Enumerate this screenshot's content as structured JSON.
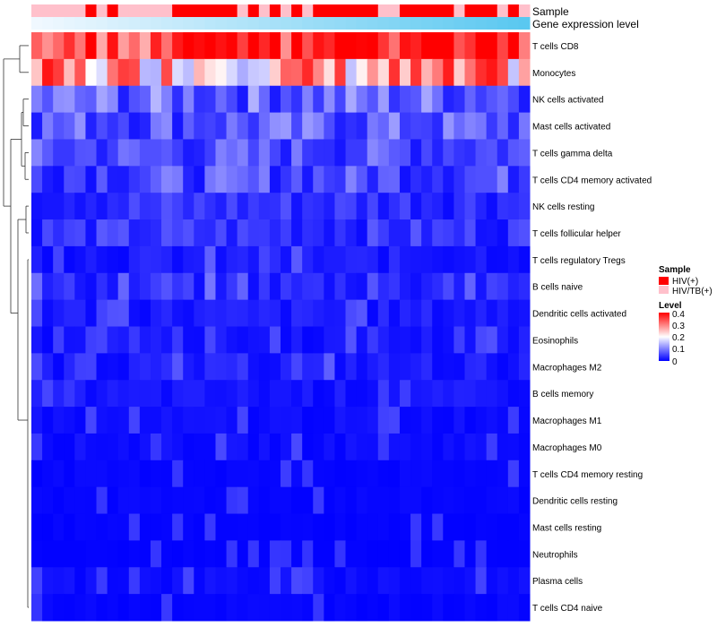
{
  "chart_data": {
    "type": "heatmap",
    "row_labels": [
      "T cells CD8",
      "Monocytes",
      "NK cells activated",
      "Mast cells activated",
      "T cells gamma delta",
      "T cells CD4 memory activated",
      "NK cells resting",
      "T cells follicular helper",
      "T cells regulatory  Tregs",
      "B cells naive",
      "Dendritic cells activated",
      "Eosinophils",
      "Macrophages M2",
      "B cells memory",
      "Macrophages M1",
      "Macrophages M0",
      "T cells CD4 memory resting",
      "Dendritic cells resting",
      "Mast cells resting",
      "Neutrophils",
      "Plasma cells",
      "T cells CD4 naive"
    ],
    "n_columns": 46,
    "sample_groups": [
      "HIV/TB(+)",
      "HIV/TB(+)",
      "HIV/TB(+)",
      "HIV/TB(+)",
      "HIV/TB(+)",
      "HIV(+)",
      "HIV/TB(+)",
      "HIV(+)",
      "HIV/TB(+)",
      "HIV/TB(+)",
      "HIV/TB(+)",
      "HIV/TB(+)",
      "HIV/TB(+)",
      "HIV(+)",
      "HIV(+)",
      "HIV(+)",
      "HIV(+)",
      "HIV(+)",
      "HIV(+)",
      "HIV/TB(+)",
      "HIV(+)",
      "HIV/TB(+)",
      "HIV(+)",
      "HIV/TB(+)",
      "HIV(+)",
      "HIV/TB(+)",
      "HIV(+)",
      "HIV(+)",
      "HIV(+)",
      "HIV(+)",
      "HIV(+)",
      "HIV(+)",
      "HIV/TB(+)",
      "HIV/TB(+)",
      "HIV(+)",
      "HIV(+)",
      "HIV(+)",
      "HIV(+)",
      "HIV(+)",
      "HIV/TB(+)",
      "HIV(+)",
      "HIV(+)",
      "HIV(+)",
      "HIV/TB(+)",
      "HIV(+)",
      "HIV/TB(+)"
    ],
    "expression_level": [
      0.0,
      0.02,
      0.04,
      0.07,
      0.09,
      0.11,
      0.13,
      0.16,
      0.18,
      0.2,
      0.22,
      0.24,
      0.27,
      0.29,
      0.31,
      0.33,
      0.36,
      0.38,
      0.4,
      0.42,
      0.44,
      0.47,
      0.49,
      0.51,
      0.53,
      0.56,
      0.58,
      0.6,
      0.62,
      0.64,
      0.67,
      0.69,
      0.71,
      0.73,
      0.76,
      0.78,
      0.8,
      0.82,
      0.84,
      0.87,
      0.89,
      0.91,
      0.93,
      0.96,
      0.98,
      1.0
    ],
    "row_means": [
      0.33,
      0.26,
      0.08,
      0.07,
      0.06,
      0.06,
      0.04,
      0.04,
      0.02,
      0.03,
      0.02,
      0.015,
      0.02,
      0.015,
      0.01,
      0.01,
      0.005,
      0.005,
      0.003,
      0.002,
      0.01,
      0.005
    ],
    "annotations": {
      "sample_track_label": "Sample",
      "expression_track_label": "Gene expression level"
    },
    "legend": {
      "sample": {
        "title": "Sample",
        "items": [
          {
            "label": "HIV(+)",
            "color": "#ff0000"
          },
          {
            "label": "HIV/TB(+)",
            "color": "#ffc0cb"
          }
        ]
      },
      "level": {
        "title": "Level",
        "ticks": [
          "0.4",
          "0.3",
          "0.2",
          "0.1",
          "0"
        ],
        "range": [
          0,
          0.4
        ],
        "colors": {
          "low": "#0000ff",
          "mid": "#ffffff",
          "high": "#ff0000"
        }
      }
    },
    "placement": {
      "legend": "right"
    }
  }
}
